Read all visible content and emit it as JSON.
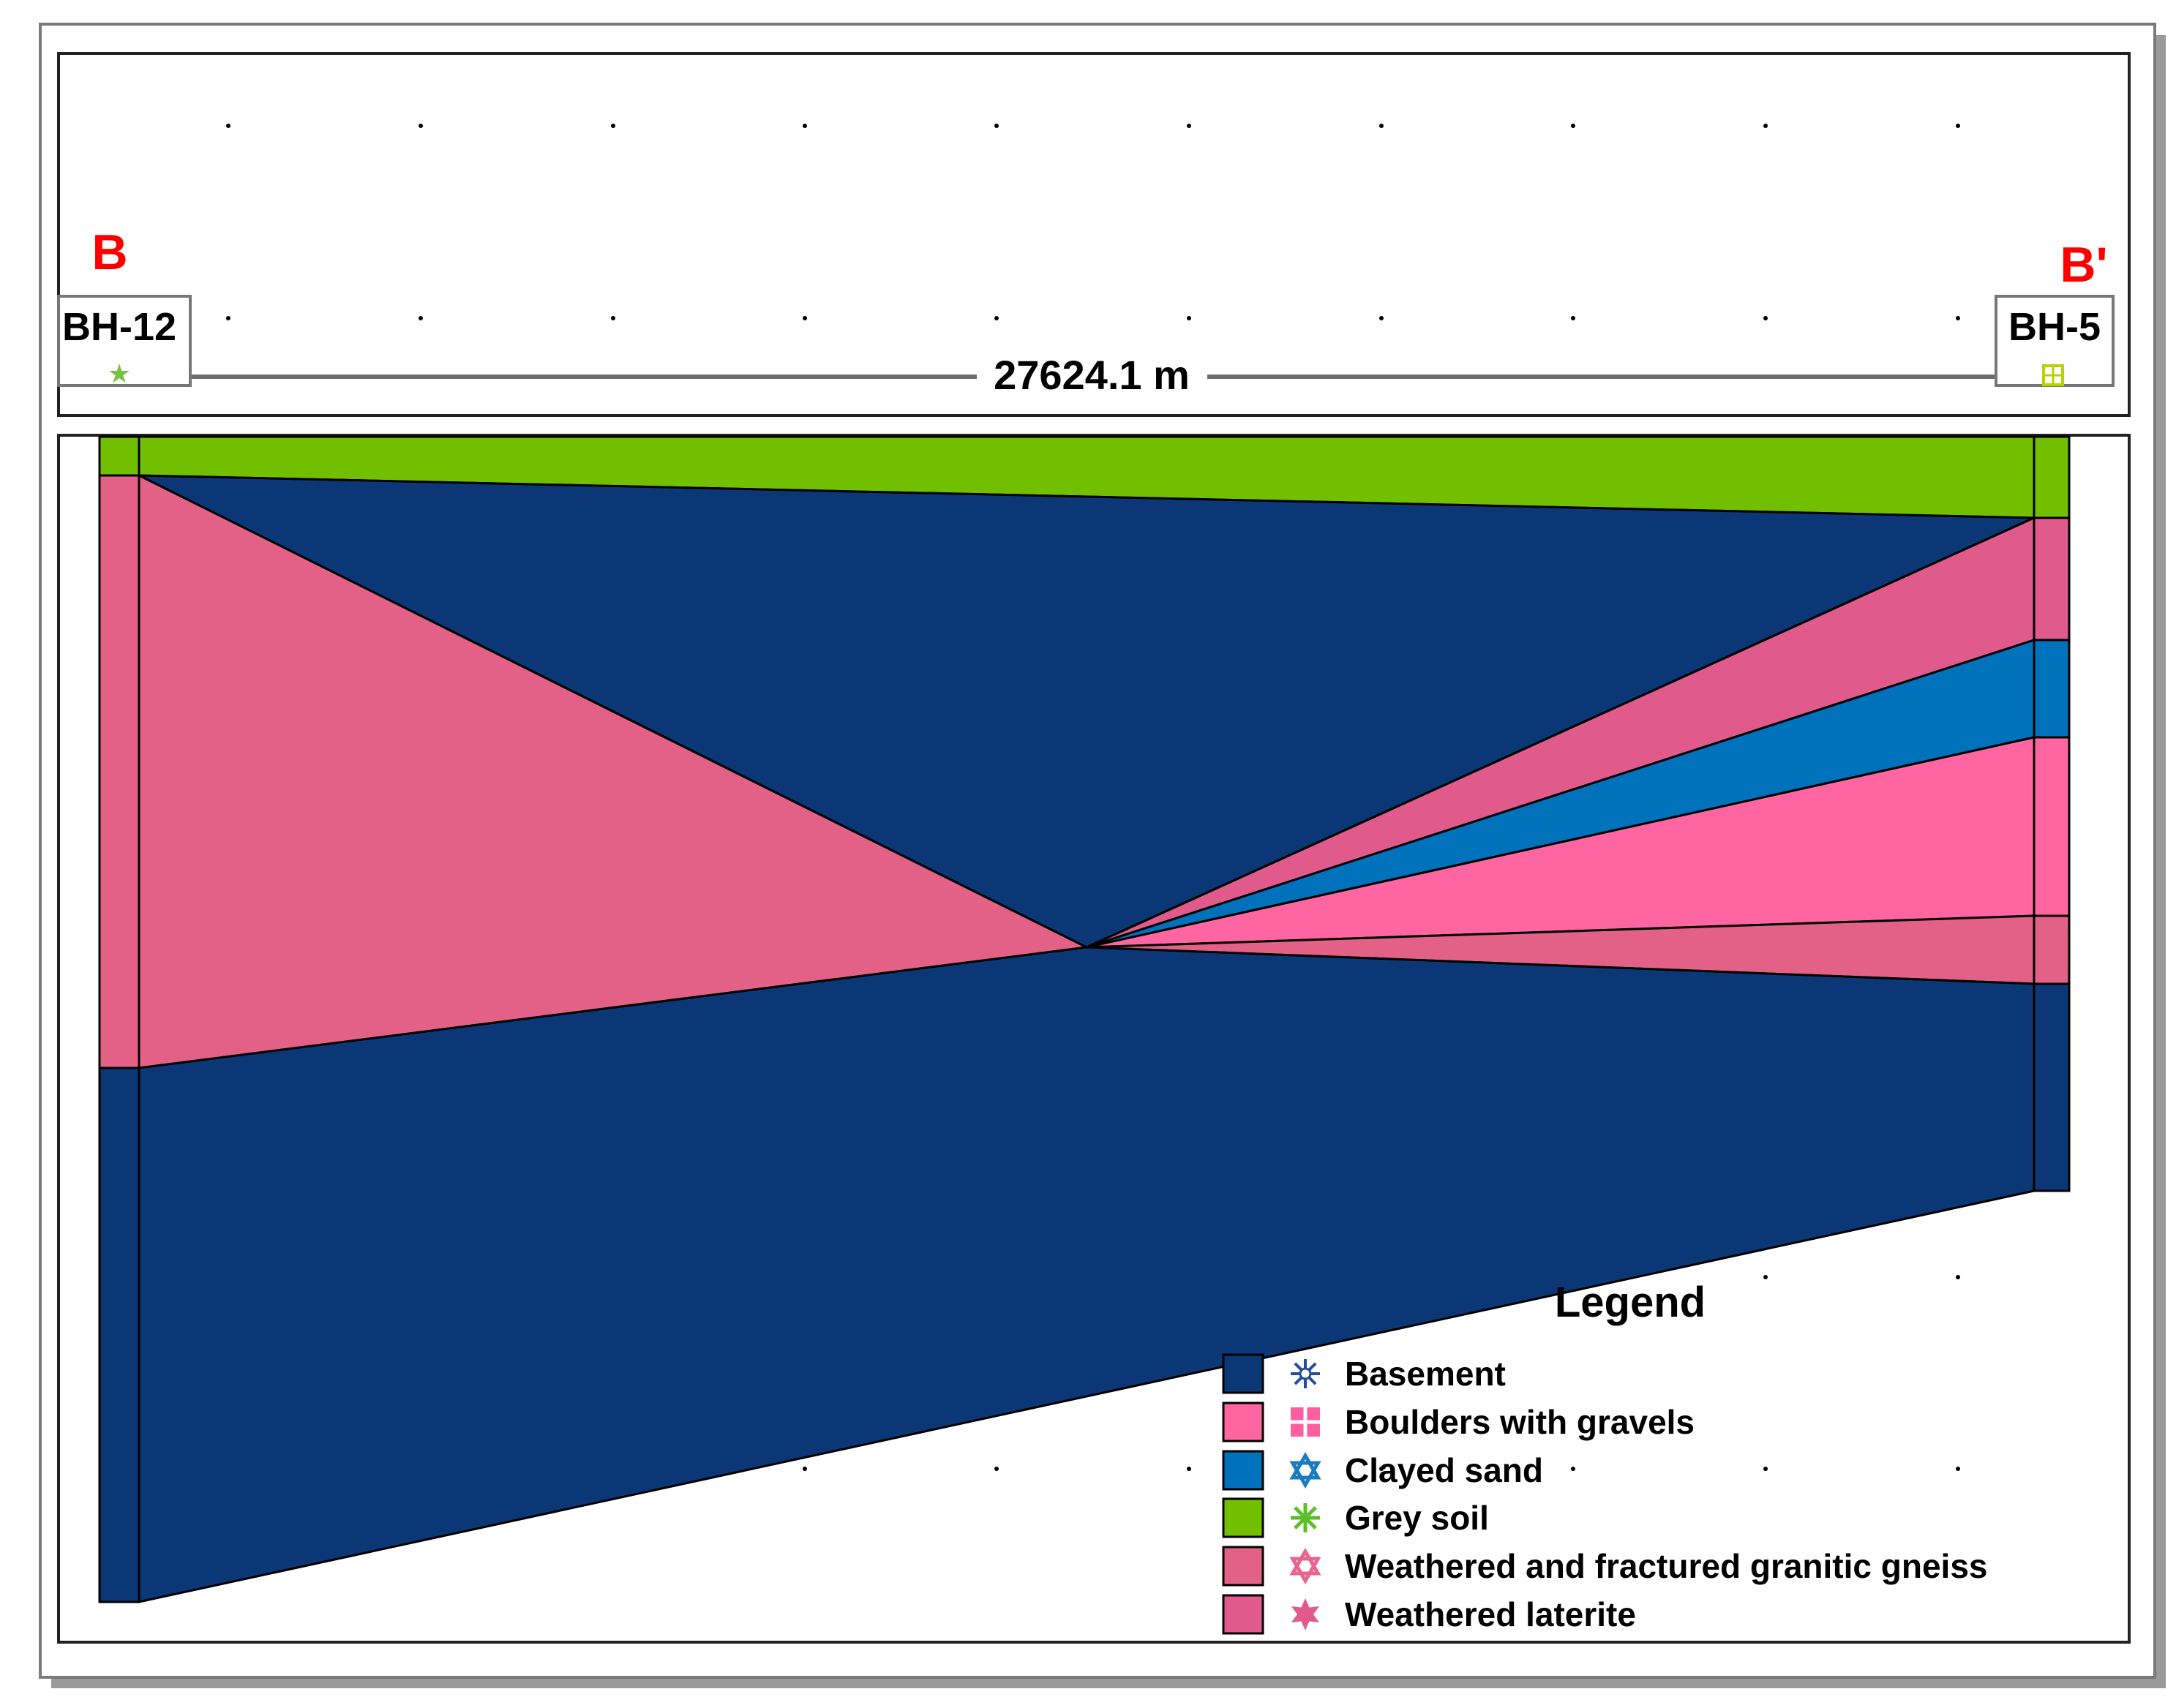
{
  "section": {
    "start_label": "B",
    "end_label": "B'",
    "distance": "27624.1 m",
    "wells": [
      {
        "name": "BH-12",
        "symbol_icon": "star-icon",
        "symbol_color": "#7AC143"
      },
      {
        "name": "BH-5",
        "symbol_icon": "grid-square-icon",
        "symbol_color": "#B5D300"
      }
    ]
  },
  "colors": {
    "basement": "#0B3776",
    "boulders_with_gravels": "#FF66A1",
    "clayed_sand": "#0072BC",
    "grey_soil": "#72BF00",
    "weathered_fractured_granitic_gneiss": "#E36187",
    "weathered_laterite": "#E05A8C",
    "label_red": "#FF0000"
  },
  "legend": {
    "title": "Legend",
    "items": [
      {
        "label": "Basement",
        "color": "#0B3776",
        "icon": "snowflake-icon",
        "icon_color": "#1F4E9A"
      },
      {
        "label": "Boulders with gravels",
        "color": "#FF66A1",
        "icon": "grid-square-icon",
        "icon_color": "#FF5FA0"
      },
      {
        "label": "Clayed sand",
        "color": "#0072BC",
        "icon": "star-of-david-icon",
        "icon_color": "#1A7CC0"
      },
      {
        "label": "Grey soil",
        "color": "#72BF00",
        "icon": "asterisk-icon",
        "icon_color": "#5DBE2A"
      },
      {
        "label": "Weathered and fractured granitic gneiss",
        "color": "#E36187",
        "icon": "star-of-david-outline-icon",
        "icon_color": "#E9648F"
      },
      {
        "label": "Weathered laterite",
        "color": "#E05A8C",
        "icon": "star-burst-icon",
        "icon_color": "#E05A8C"
      }
    ]
  }
}
